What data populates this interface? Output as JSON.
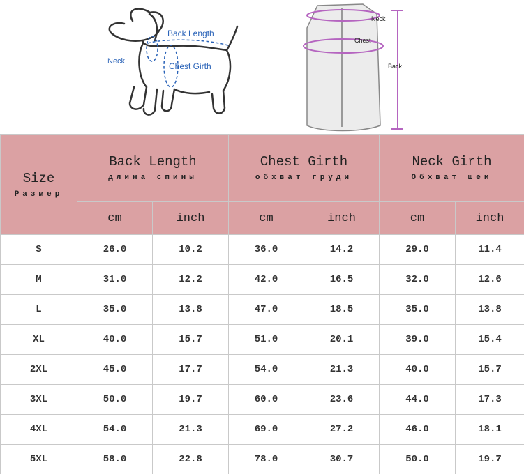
{
  "illustration": {
    "dog": {
      "back_length": "Back Length",
      "neck": "Neck",
      "chest_girth": "Chest Girth"
    },
    "vest": {
      "neck": "Neck",
      "chest": "Chest",
      "back": "Back"
    }
  },
  "table": {
    "size_header": {
      "en": "Size",
      "ru": "Размер"
    },
    "groups": [
      {
        "en": "Back Length",
        "ru": "длина спины"
      },
      {
        "en": "Chest Girth",
        "ru": "обхват груди"
      },
      {
        "en": "Neck Girth",
        "ru": "Обхват шеи"
      }
    ],
    "units": [
      "cm",
      "inch",
      "cm",
      "inch",
      "cm",
      "inch"
    ],
    "rows": [
      [
        "S",
        "26.0",
        "10.2",
        "36.0",
        "14.2",
        "29.0",
        "11.4"
      ],
      [
        "M",
        "31.0",
        "12.2",
        "42.0",
        "16.5",
        "32.0",
        "12.6"
      ],
      [
        "L",
        "35.0",
        "13.8",
        "47.0",
        "18.5",
        "35.0",
        "13.8"
      ],
      [
        "XL",
        "40.0",
        "15.7",
        "51.0",
        "20.1",
        "39.0",
        "15.4"
      ],
      [
        "2XL",
        "45.0",
        "17.7",
        "54.0",
        "21.3",
        "40.0",
        "15.7"
      ],
      [
        "3XL",
        "50.0",
        "19.7",
        "60.0",
        "23.6",
        "44.0",
        "17.3"
      ],
      [
        "4XL",
        "54.0",
        "21.3",
        "69.0",
        "27.2",
        "46.0",
        "18.1"
      ],
      [
        "5XL",
        "58.0",
        "22.8",
        "78.0",
        "30.7",
        "50.0",
        "19.7"
      ]
    ]
  }
}
